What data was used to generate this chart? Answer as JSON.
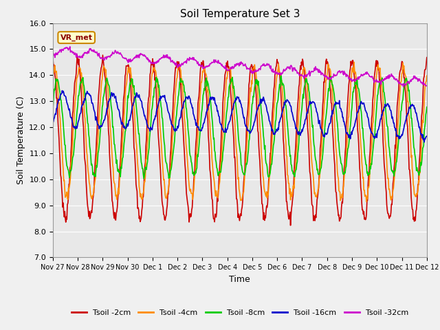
{
  "title": "Soil Temperature Set 3",
  "xlabel": "Time",
  "ylabel": "Soil Temperature (C)",
  "ylim": [
    7.0,
    16.0
  ],
  "yticks": [
    7.0,
    8.0,
    9.0,
    10.0,
    11.0,
    12.0,
    13.0,
    14.0,
    15.0,
    16.0
  ],
  "xtick_labels": [
    "Nov 27",
    "Nov 28",
    "Nov 29",
    "Nov 30",
    "Dec 1",
    "Dec 2",
    "Dec 3",
    "Dec 4",
    "Dec 5",
    "Dec 6",
    "Dec 7",
    "Dec 8",
    "Dec 9",
    "Dec 10",
    "Dec 11",
    "Dec 12"
  ],
  "legend_labels": [
    "Tsoil -2cm",
    "Tsoil -4cm",
    "Tsoil -8cm",
    "Tsoil -16cm",
    "Tsoil -32cm"
  ],
  "colors": [
    "#cc0000",
    "#ff8c00",
    "#00cc00",
    "#0000cc",
    "#cc00cc"
  ],
  "annotation_text": "VR_met",
  "annotation_color": "#8b0000",
  "annotation_bg": "#ffffcc",
  "plot_bg": "#e8e8e8",
  "fig_bg": "#f0f0f0",
  "grid_color": "#ffffff",
  "n_days": 15,
  "samples_per_day": 48
}
